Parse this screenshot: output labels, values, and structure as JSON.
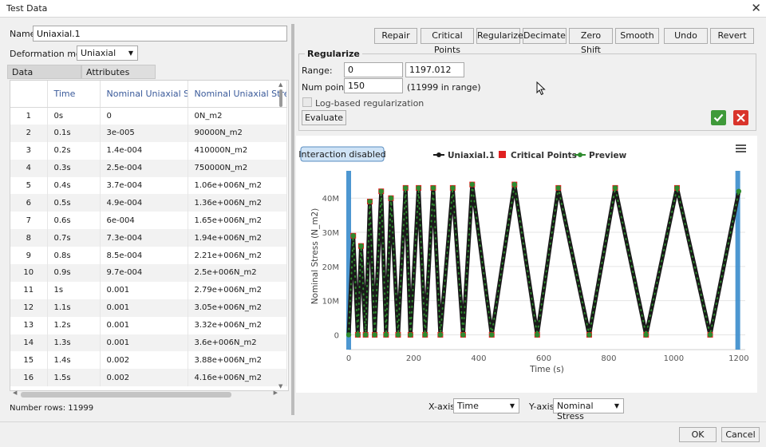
{
  "window": {
    "title": "Test Data",
    "close_glyph": "✕"
  },
  "name_field": {
    "label": "Name:",
    "value": "Uniaxial.1"
  },
  "deformation": {
    "label": "Deformation mode:",
    "value": "Uniaxial"
  },
  "tabs": [
    {
      "label": "Data"
    },
    {
      "label": "Attributes"
    }
  ],
  "table": {
    "headers": [
      "",
      "Time",
      "Nominal Uniaxial Strain",
      "Nominal Uniaxial Stress"
    ],
    "rows": [
      [
        "1",
        "0s",
        "0",
        "0N_m2"
      ],
      [
        "2",
        "0.1s",
        "3e-005",
        "90000N_m2"
      ],
      [
        "3",
        "0.2s",
        "1.4e-004",
        "410000N_m2"
      ],
      [
        "4",
        "0.3s",
        "2.5e-004",
        "750000N_m2"
      ],
      [
        "5",
        "0.4s",
        "3.7e-004",
        "1.06e+006N_m2"
      ],
      [
        "6",
        "0.5s",
        "4.9e-004",
        "1.36e+006N_m2"
      ],
      [
        "7",
        "0.6s",
        "6e-004",
        "1.65e+006N_m2"
      ],
      [
        "8",
        "0.7s",
        "7.3e-004",
        "1.94e+006N_m2"
      ],
      [
        "9",
        "0.8s",
        "8.5e-004",
        "2.21e+006N_m2"
      ],
      [
        "10",
        "0.9s",
        "9.7e-004",
        "2.5e+006N_m2"
      ],
      [
        "11",
        "1s",
        "0.001",
        "2.79e+006N_m2"
      ],
      [
        "12",
        "1.1s",
        "0.001",
        "3.05e+006N_m2"
      ],
      [
        "13",
        "1.2s",
        "0.001",
        "3.32e+006N_m2"
      ],
      [
        "14",
        "1.3s",
        "0.001",
        "3.6e+006N_m2"
      ],
      [
        "15",
        "1.4s",
        "0.002",
        "3.88e+006N_m2"
      ],
      [
        "16",
        "1.5s",
        "0.002",
        "4.16e+006N_m2"
      ]
    ]
  },
  "status": {
    "rows_text": "Number rows: 11999"
  },
  "toolbar": {
    "repair": "Repair",
    "critical_points": "Critical Points",
    "regularize": "Regularize",
    "decimate": "Decimate",
    "zero_shift": "Zero Shift",
    "smooth": "Smooth",
    "undo": "Undo",
    "revert": "Revert"
  },
  "regularize": {
    "title": "Regularize",
    "range_label": "Range:",
    "range_min": "0",
    "range_max": "1197.012",
    "num_points_label": "Num points:",
    "num_points": "150",
    "in_range": "(11999 in range)",
    "log_label": "Log-based regularization",
    "evaluate": "Evaluate",
    "accept_icon": "check-icon",
    "reject_icon": "x-icon"
  },
  "chart": {
    "interaction_label": "Interaction disabled",
    "menu_icon": "hamburger-icon",
    "legend": [
      {
        "label": "Uniaxial.1",
        "color": "#1a1a1a"
      },
      {
        "label": "Critical Points",
        "color": "#e02020"
      },
      {
        "label": "Preview",
        "color": "#2e8b2e"
      }
    ]
  },
  "chart_data": {
    "type": "line",
    "title": "",
    "xlabel": "Time (s)",
    "ylabel": "Nominal Stress (N_m2)",
    "xlim": [
      0,
      1220
    ],
    "ylim": [
      -2000000,
      48000000
    ],
    "x_ticks": [
      0,
      200,
      400,
      600,
      800,
      1000,
      1200
    ],
    "x_tick_labels": [
      "0",
      "200",
      "400",
      "600",
      "800",
      "1000",
      "1200"
    ],
    "y_ticks": [
      0,
      10000000,
      20000000,
      30000000,
      40000000
    ],
    "y_tick_labels": [
      "0",
      "10M",
      "20M",
      "30M",
      "40M"
    ],
    "range_markers": [
      0,
      1197
    ],
    "series": [
      {
        "name": "Uniaxial.1",
        "x": [
          0,
          14,
          28,
          38,
          52,
          65,
          80,
          100,
          115,
          130,
          152,
          175,
          190,
          215,
          235,
          260,
          282,
          320,
          352,
          380,
          440,
          510,
          580,
          645,
          740,
          820,
          915,
          1010,
          1112,
          1200
        ],
        "y": [
          0,
          29000000,
          0,
          26000000,
          0,
          39000000,
          0,
          42000000,
          0,
          40000000,
          0,
          43000000,
          0,
          43000000,
          0,
          43000000,
          0,
          43000000,
          0,
          44000000,
          0,
          44000000,
          0,
          43000000,
          0,
          43000000,
          0,
          43000000,
          0,
          42000000
        ]
      },
      {
        "name": "Critical Points",
        "x": [
          14,
          28,
          38,
          52,
          65,
          80,
          100,
          115,
          130,
          152,
          175,
          190,
          215,
          235,
          260,
          282,
          320,
          352,
          380,
          440,
          510,
          580,
          645,
          740,
          820,
          915,
          1010,
          1112
        ],
        "y": [
          29000000,
          0,
          26000000,
          0,
          39000000,
          0,
          42000000,
          0,
          40000000,
          0,
          43000000,
          0,
          43000000,
          0,
          43000000,
          0,
          43000000,
          0,
          44000000,
          0,
          44000000,
          0,
          43000000,
          0,
          43000000,
          0,
          43000000,
          0
        ]
      },
      {
        "name": "Preview",
        "x": [
          0,
          14,
          28,
          38,
          52,
          65,
          80,
          100,
          115,
          130,
          152,
          175,
          190,
          215,
          235,
          260,
          282,
          320,
          352,
          380,
          440,
          510,
          580,
          645,
          740,
          820,
          915,
          1010,
          1112,
          1200
        ],
        "y": [
          0,
          29000000,
          0,
          26000000,
          0,
          39000000,
          0,
          42000000,
          0,
          40000000,
          0,
          43000000,
          0,
          43000000,
          0,
          43000000,
          0,
          43000000,
          0,
          44000000,
          0,
          44000000,
          0,
          43000000,
          0,
          43000000,
          0,
          43000000,
          0,
          42000000
        ]
      }
    ]
  },
  "axis_selectors": {
    "x_label": "X-axis:",
    "x_value": "Time",
    "y_label": "Y-axis:",
    "y_value": "Nominal Stress"
  },
  "footer": {
    "ok": "OK",
    "cancel": "Cancel"
  }
}
